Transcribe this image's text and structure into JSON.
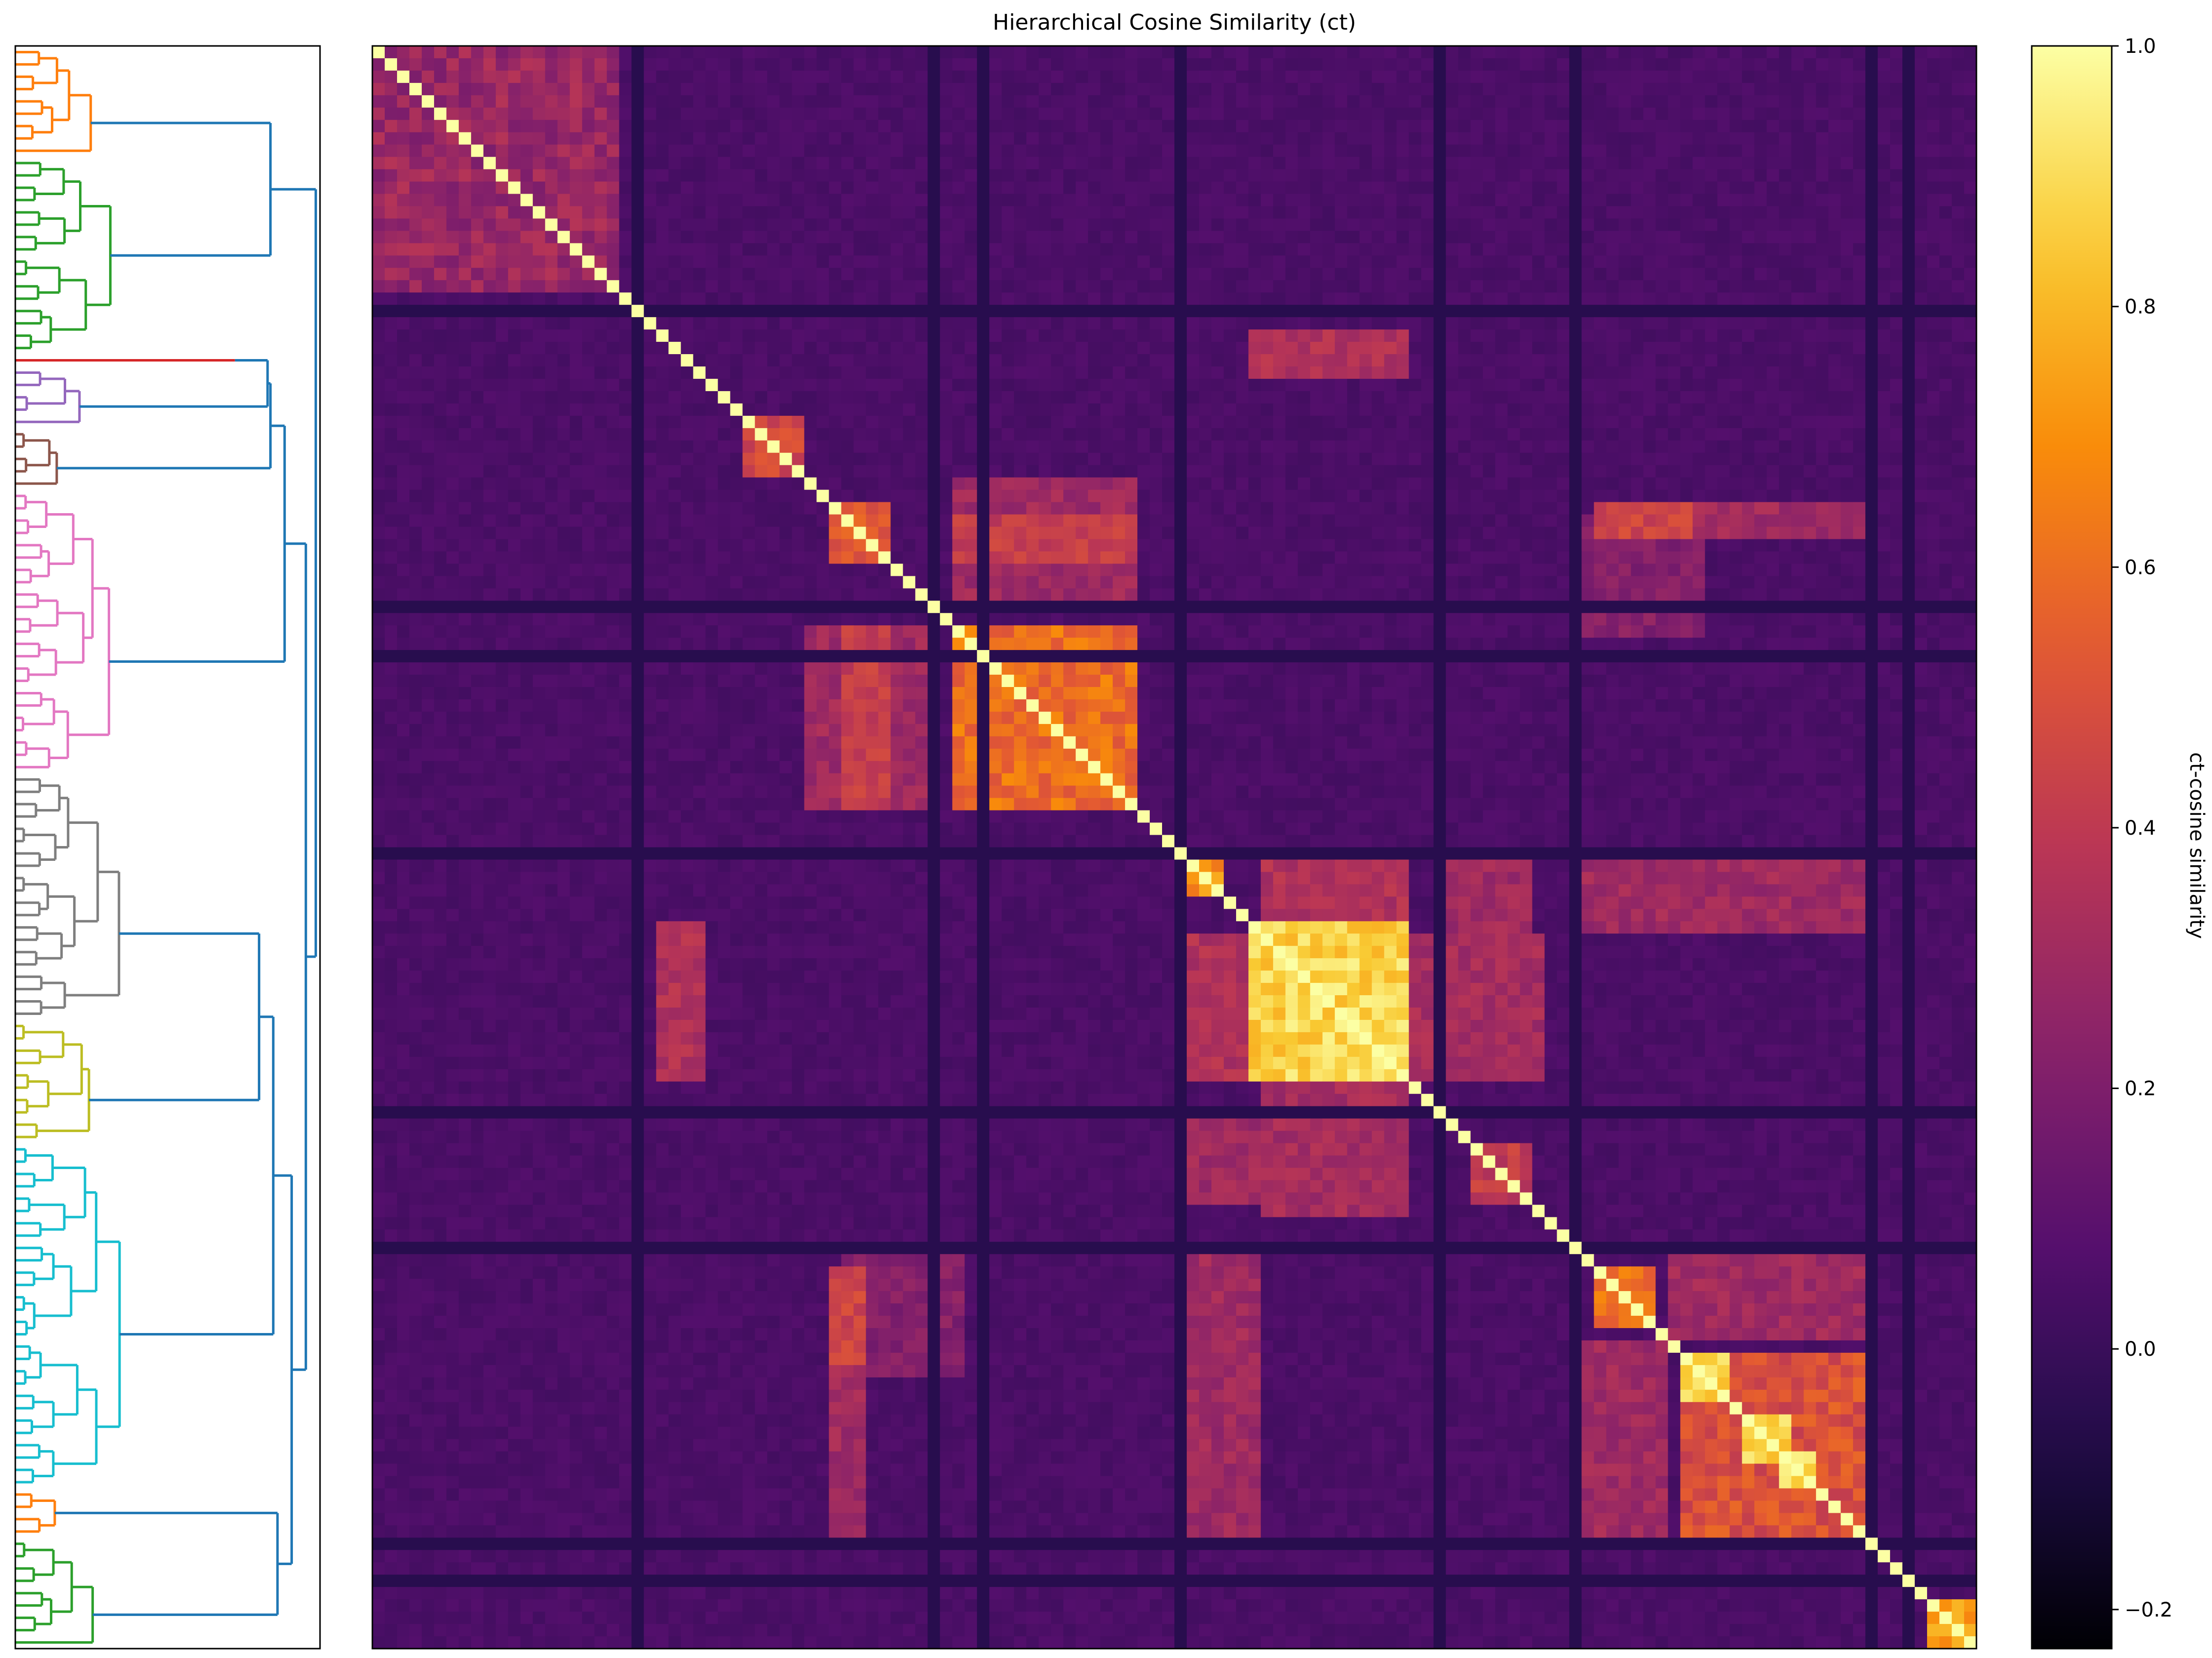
{
  "chart_data": {
    "type": "heatmap",
    "title": "Hierarchical Cosine Similarity (ct)",
    "colorbar": {
      "label": "ct-cosine similarity",
      "colormap": "inferno",
      "range": [
        -0.23,
        1.0
      ],
      "ticks": [
        1.0,
        0.8,
        0.6,
        0.4,
        0.2,
        0.0,
        -0.2
      ],
      "tick_labels": [
        "1.0",
        "0.8",
        "0.6",
        "0.4",
        "0.2",
        "0.0",
        "−0.2"
      ]
    },
    "matrix": {
      "size": 130,
      "diagonal_value": 1.0,
      "background_value": 0.05,
      "blocks": [
        {
          "start": 0,
          "end": 20,
          "value": 0.28
        },
        {
          "start": 30,
          "end": 35,
          "value": 0.45
        },
        {
          "start": 37,
          "end": 42,
          "value": 0.5
        },
        {
          "start": 47,
          "end": 62,
          "value": 0.6
        },
        {
          "start": 66,
          "end": 69,
          "value": 0.7
        },
        {
          "start": 71,
          "end": 84,
          "value": 0.88
        },
        {
          "start": 89,
          "end": 94,
          "value": 0.4
        },
        {
          "start": 99,
          "end": 104,
          "value": 0.62
        },
        {
          "start": 106,
          "end": 122,
          "value": 0.5
        },
        {
          "start": 106,
          "end": 110,
          "value": 0.85
        },
        {
          "start": 111,
          "end": 115,
          "value": 0.9
        },
        {
          "start": 114,
          "end": 117,
          "value": 0.88
        },
        {
          "start": 126,
          "end": 130,
          "value": 0.75
        }
      ],
      "bands": [
        {
          "rows": [
            72,
            84
          ],
          "cols": [
            66,
            71
          ],
          "value": 0.35
        },
        {
          "rows": [
            72,
            84
          ],
          "cols": [
            84,
            95
          ],
          "value": 0.32
        },
        {
          "rows": [
            23,
            27
          ],
          "cols": [
            71,
            84
          ],
          "value": 0.35
        },
        {
          "rows": [
            38,
            42
          ],
          "cols": [
            47,
            62
          ],
          "value": 0.42
        },
        {
          "rows": [
            47,
            62
          ],
          "cols": [
            35,
            46
          ],
          "value": 0.3
        },
        {
          "rows": [
            87,
            94
          ],
          "cols": [
            66,
            84
          ],
          "value": 0.3
        },
        {
          "rows": [
            105,
            122
          ],
          "cols": [
            98,
            105
          ],
          "value": 0.3
        },
        {
          "rows": [
            97,
            108
          ],
          "cols": [
            38,
            48
          ],
          "value": 0.22
        },
        {
          "rows": [
            66,
            72
          ],
          "cols": [
            98,
            122
          ],
          "value": 0.3
        },
        {
          "rows": [
            37,
            40
          ],
          "cols": [
            99,
            107
          ],
          "value": 0.45
        },
        {
          "rows": [
            37,
            40
          ],
          "cols": [
            106,
            122
          ],
          "value": 0.3
        }
      ],
      "dark_lines": [
        21,
        45,
        49,
        65,
        86,
        97,
        121,
        124
      ],
      "dark_line_value": -0.05
    },
    "dendrogram": {
      "orientation": "left",
      "cluster_colors": [
        "#ff7f0e",
        "#2ca02c",
        "#d62728",
        "#9467bd",
        "#8c564b",
        "#e377c2",
        "#7f7f7f",
        "#bcbd22",
        "#17becf",
        "#ff7f0e",
        "#2ca02c"
      ],
      "cluster_sizes": [
        9,
        16,
        1,
        5,
        5,
        23,
        20,
        10,
        28,
        4,
        9
      ],
      "link_color": "#1f77b4"
    }
  }
}
